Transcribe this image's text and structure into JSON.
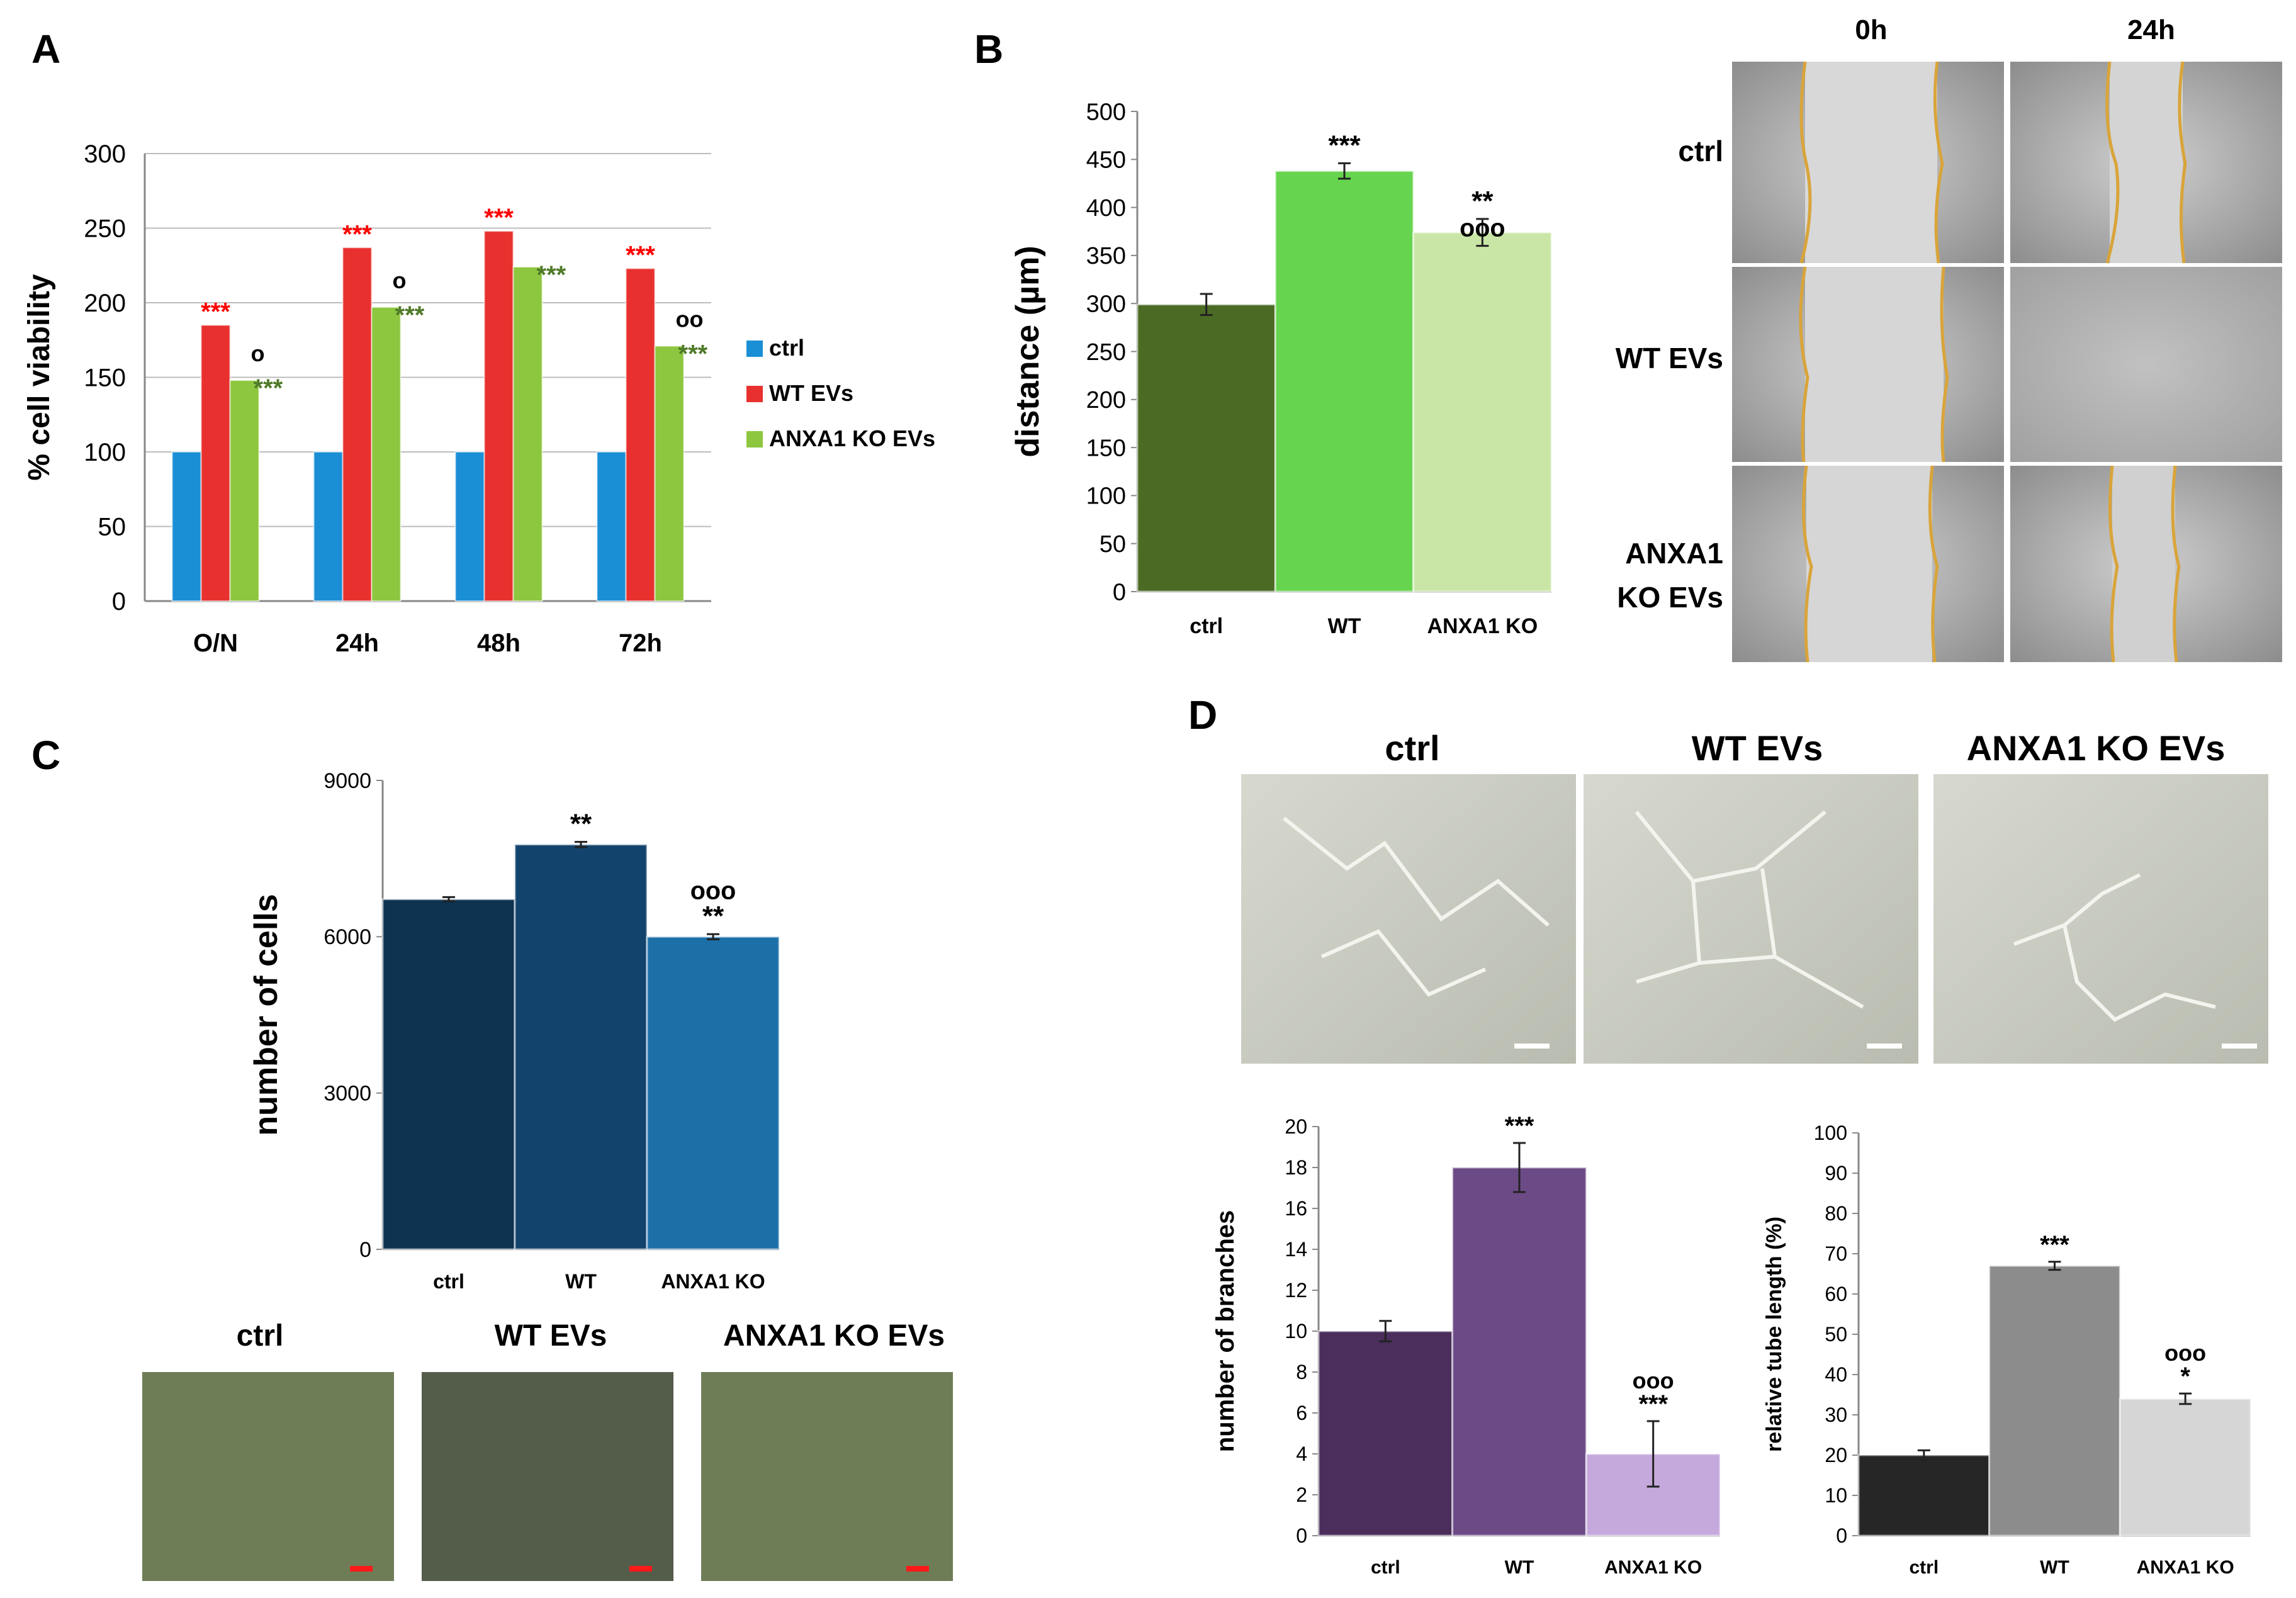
{
  "panels": {
    "A": {
      "letter": "A"
    },
    "B": {
      "letter": "B"
    },
    "C": {
      "letter": "C"
    },
    "D": {
      "letter": "D"
    }
  },
  "micrographs": {
    "B": {
      "col_labels": [
        "0h",
        "24h"
      ],
      "row_labels": [
        "ctrl",
        "WT EVs",
        "ANXA1",
        "KO EVs"
      ]
    },
    "C": {
      "labels": [
        "ctrl",
        "WT EVs",
        "ANXA1 KO EVs"
      ]
    },
    "D": {
      "labels": [
        "ctrl",
        "WT EVs",
        "ANXA1 KO EVs"
      ]
    }
  },
  "colors": {
    "ctrl_blue": "#1b8fd6",
    "wt_red": "#e8312f",
    "ko_green": "#8dc63f",
    "sig_red": "#ff0000",
    "sig_green": "#4f7a28",
    "B_ctrl": "#4b6b25",
    "B_wt": "#66d44e",
    "B_ko": "#c9e6a6",
    "C_ctrl": "#0d3350",
    "C_wt": "#11436c",
    "C_ko": "#1d6fa8",
    "D1_ctrl": "#4b2e5c",
    "D1_wt": "#6c4a86",
    "D1_ko": "#c5a9dc",
    "D2_ctrl": "#262626",
    "D2_wt": "#8c8c8c",
    "D2_ko": "#d6d6d6"
  },
  "chart_data": [
    {
      "id": "A",
      "type": "bar",
      "ylabel": "% cell viability",
      "ylim": [
        0,
        300
      ],
      "yticks": [
        "0",
        "50",
        "100",
        "150",
        "200",
        "250",
        "300"
      ],
      "categories": [
        "O/N",
        "24h",
        "48h",
        "72h"
      ],
      "series": [
        {
          "name": "ctrl",
          "values": [
            100,
            100,
            100,
            100
          ]
        },
        {
          "name": "WT EVs",
          "values": [
            185,
            237,
            248,
            223
          ]
        },
        {
          "name": "ANXA1 KO EVs",
          "values": [
            148,
            197,
            224,
            171
          ]
        }
      ],
      "sig_wt": [
        "***",
        "***",
        "***",
        "***"
      ],
      "sig_ko": [
        "***",
        "***",
        "***",
        "***"
      ],
      "sig_circle": [
        "o",
        "o",
        "",
        "oo"
      ],
      "legend": [
        "ctrl",
        "WT EVs",
        "ANXA1 KO EVs"
      ],
      "legend_position": "right"
    },
    {
      "id": "B",
      "type": "bar",
      "ylabel": "distance (µm)",
      "ylim": [
        0,
        500
      ],
      "yticks": [
        "0",
        "50",
        "100",
        "150",
        "200",
        "250",
        "300",
        "350",
        "400",
        "450",
        "500"
      ],
      "categories": [
        "ctrl",
        "WT",
        "ANXA1 KO"
      ],
      "values": [
        299,
        438,
        374
      ],
      "errors": [
        11,
        8,
        14
      ],
      "sig": [
        "",
        "***",
        "**"
      ],
      "sig2": [
        "",
        "",
        "ooo"
      ]
    },
    {
      "id": "C",
      "type": "bar",
      "ylabel": "number of cells",
      "ylim": [
        0,
        9000
      ],
      "yticks": [
        "0",
        "3000",
        "6000",
        "9000"
      ],
      "categories": [
        "ctrl",
        "WT",
        "ANXA1 KO"
      ],
      "values": [
        6720,
        7770,
        6000
      ],
      "errors": [
        40,
        50,
        50
      ],
      "sig_top": [
        "",
        "",
        "ooo"
      ],
      "sig": [
        "",
        "**",
        "**"
      ]
    },
    {
      "id": "D1",
      "type": "bar",
      "ylabel": "number of branches",
      "ylim": [
        0,
        20
      ],
      "yticks": [
        "0",
        "2",
        "4",
        "6",
        "8",
        "10",
        "12",
        "14",
        "16",
        "18",
        "20"
      ],
      "categories": [
        "ctrl",
        "WT",
        "ANXA1 KO"
      ],
      "values": [
        10,
        18,
        4
      ],
      "errors": [
        0.5,
        1.2,
        1.6
      ],
      "sig_top": [
        "",
        "",
        "ooo"
      ],
      "sig": [
        "",
        "***",
        "***"
      ]
    },
    {
      "id": "D2",
      "type": "bar",
      "ylabel": "relative tube length (%)",
      "ylim": [
        0,
        100
      ],
      "yticks": [
        "0",
        "10",
        "20",
        "30",
        "40",
        "50",
        "60",
        "70",
        "80",
        "90",
        "100"
      ],
      "categories": [
        "ctrl",
        "WT",
        "ANXA1 KO"
      ],
      "values": [
        20,
        67,
        34
      ],
      "errors": [
        1.2,
        1,
        1.3
      ],
      "sig_top": [
        "",
        "",
        "ooo"
      ],
      "sig": [
        "",
        "***",
        "*"
      ]
    }
  ]
}
